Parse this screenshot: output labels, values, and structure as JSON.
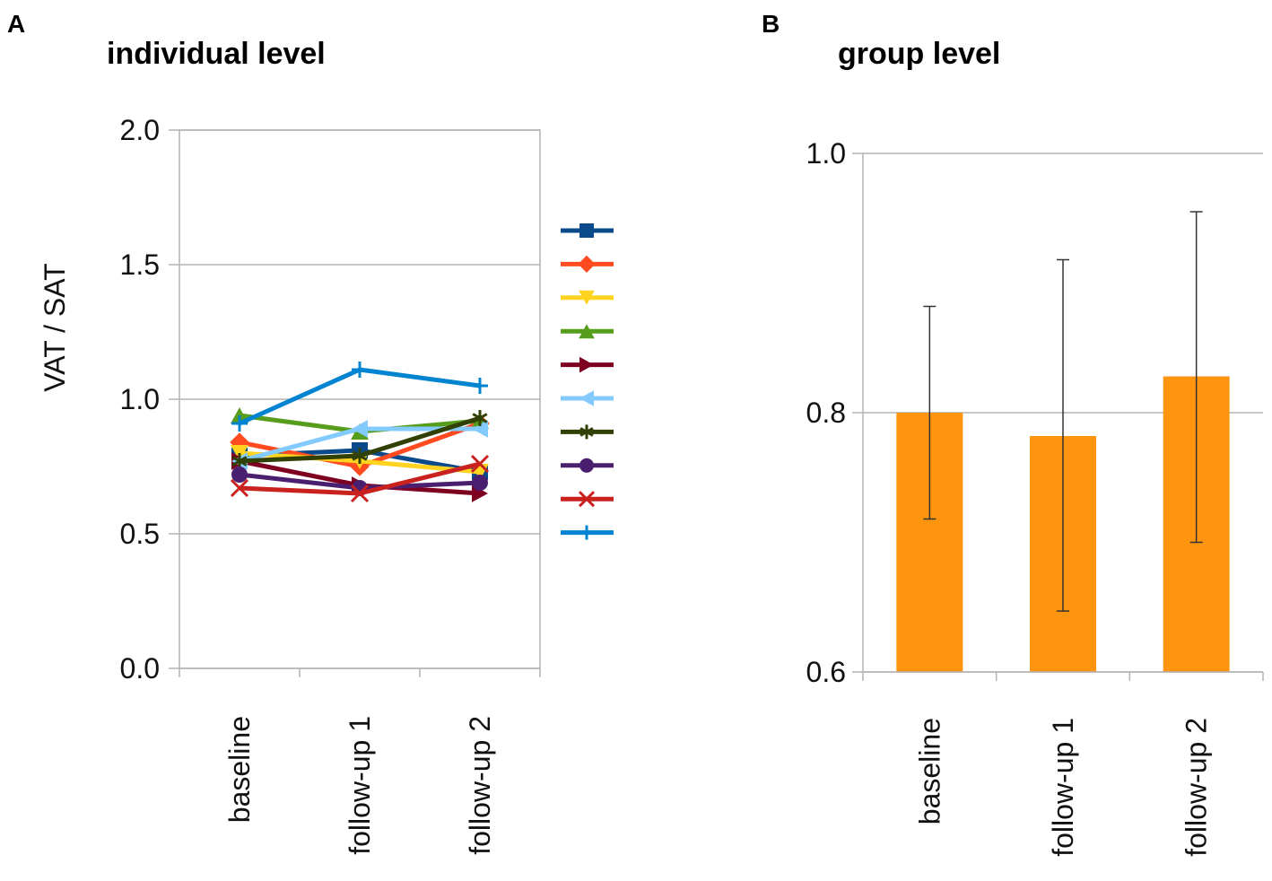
{
  "chart_data": [
    {
      "panel": "A",
      "type": "line",
      "title": "individual level",
      "xlabel": "",
      "ylabel": "VAT / SAT",
      "categories": [
        "baseline",
        "follow-up 1",
        "follow-up 2"
      ],
      "ylim": [
        0,
        2
      ],
      "yticks": [
        "0.0",
        "0.5",
        "1.0",
        "1.5",
        "2.0"
      ],
      "ytick_values": [
        0,
        0.5,
        1,
        1.5,
        2
      ],
      "grid": true,
      "legend": "right",
      "series": [
        {
          "name": "",
          "color": "#0a4a8a",
          "marker": "square",
          "values": [
            0.79,
            0.81,
            0.73
          ]
        },
        {
          "name": "",
          "color": "#ff4b1f",
          "marker": "diamond",
          "values": [
            0.84,
            0.75,
            0.91
          ]
        },
        {
          "name": "",
          "color": "#ffd320",
          "marker": "triangle-down",
          "values": [
            0.8,
            0.77,
            0.73
          ]
        },
        {
          "name": "",
          "color": "#579d1c",
          "marker": "triangle-up",
          "values": [
            0.94,
            0.88,
            0.92
          ]
        },
        {
          "name": "",
          "color": "#7e0021",
          "marker": "triangle-right",
          "values": [
            0.77,
            0.68,
            0.65
          ]
        },
        {
          "name": "",
          "color": "#83caff",
          "marker": "triangle-left",
          "values": [
            0.77,
            0.89,
            0.89
          ]
        },
        {
          "name": "",
          "color": "#314004",
          "marker": "star",
          "values": [
            0.77,
            0.79,
            0.93
          ]
        },
        {
          "name": "",
          "color": "#4b1f6f",
          "marker": "circle",
          "values": [
            0.72,
            0.67,
            0.69
          ]
        },
        {
          "name": "",
          "color": "#c9211e",
          "marker": "x",
          "values": [
            0.67,
            0.65,
            0.76
          ]
        },
        {
          "name": "",
          "color": "#0084d1",
          "marker": "plus",
          "values": [
            0.91,
            1.11,
            1.05
          ]
        }
      ]
    },
    {
      "panel": "B",
      "type": "bar",
      "title": "group level",
      "xlabel": "",
      "ylabel": "",
      "categories": [
        "baseline",
        "follow-up 1",
        "follow-up 2"
      ],
      "values": [
        0.8,
        0.782,
        0.828
      ],
      "error_low": [
        0.718,
        0.647,
        0.7
      ],
      "error_high": [
        0.882,
        0.918,
        0.955
      ],
      "ylim": [
        0.6,
        1.0
      ],
      "yticks": [
        "0.6",
        "0.8",
        "1.0"
      ],
      "ytick_values": [
        0.6,
        0.8,
        1.0
      ],
      "bar_color": "#ff950e",
      "grid": true
    }
  ]
}
